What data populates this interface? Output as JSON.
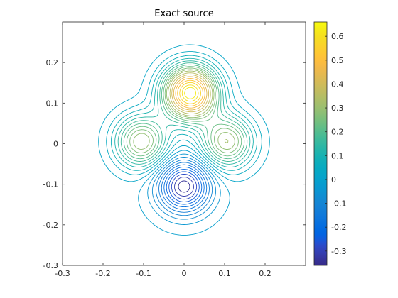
{
  "chart_data": {
    "type": "contour",
    "title": "Exact source",
    "xlabel": "",
    "ylabel": "",
    "xlim": [
      -0.3,
      0.3
    ],
    "ylim": [
      -0.3,
      0.3
    ],
    "x_ticks": [
      -0.3,
      -0.2,
      -0.1,
      0,
      0.1,
      0.2
    ],
    "x_tick_labels": [
      "-0.3",
      "-0.2",
      "-0.1",
      "0",
      "0.1",
      "0.2"
    ],
    "y_ticks": [
      0.2,
      0.1,
      0,
      -0.1,
      -0.2,
      -0.3
    ],
    "y_tick_labels": [
      "0.2",
      "0.1",
      "0",
      "-0.1",
      "-0.2",
      "-0.3"
    ],
    "colorbar": {
      "range": [
        -0.36,
        0.66
      ],
      "ticks": [
        0.6,
        0.5,
        0.4,
        0.3,
        0.2,
        0.1,
        0,
        -0.1,
        -0.2,
        -0.3
      ],
      "tick_labels": [
        "0.6",
        "0.5",
        "0.4",
        "0.3",
        "0.2",
        "0.1",
        "0",
        "-0.1",
        "-0.2",
        "-0.3"
      ],
      "colormap": "parula"
    },
    "sources": [
      {
        "x": 0.015,
        "y": 0.125,
        "peak": 0.66
      },
      {
        "x": -0.105,
        "y": 0.005,
        "peak": 0.32
      },
      {
        "x": 0.105,
        "y": 0.005,
        "peak": 0.32
      },
      {
        "x": 0.0,
        "y": -0.105,
        "peak": -0.36
      }
    ],
    "levels": [
      -0.34,
      -0.31,
      -0.28,
      -0.25,
      -0.22,
      -0.19,
      -0.16,
      -0.13,
      -0.1,
      -0.07,
      -0.04,
      -0.01,
      0.02,
      0.05,
      0.08,
      0.11,
      0.14,
      0.17,
      0.2,
      0.23,
      0.26,
      0.29,
      0.32,
      0.36,
      0.4,
      0.44,
      0.48,
      0.52,
      0.56,
      0.6,
      0.63
    ],
    "grid": false,
    "legend": "none"
  }
}
